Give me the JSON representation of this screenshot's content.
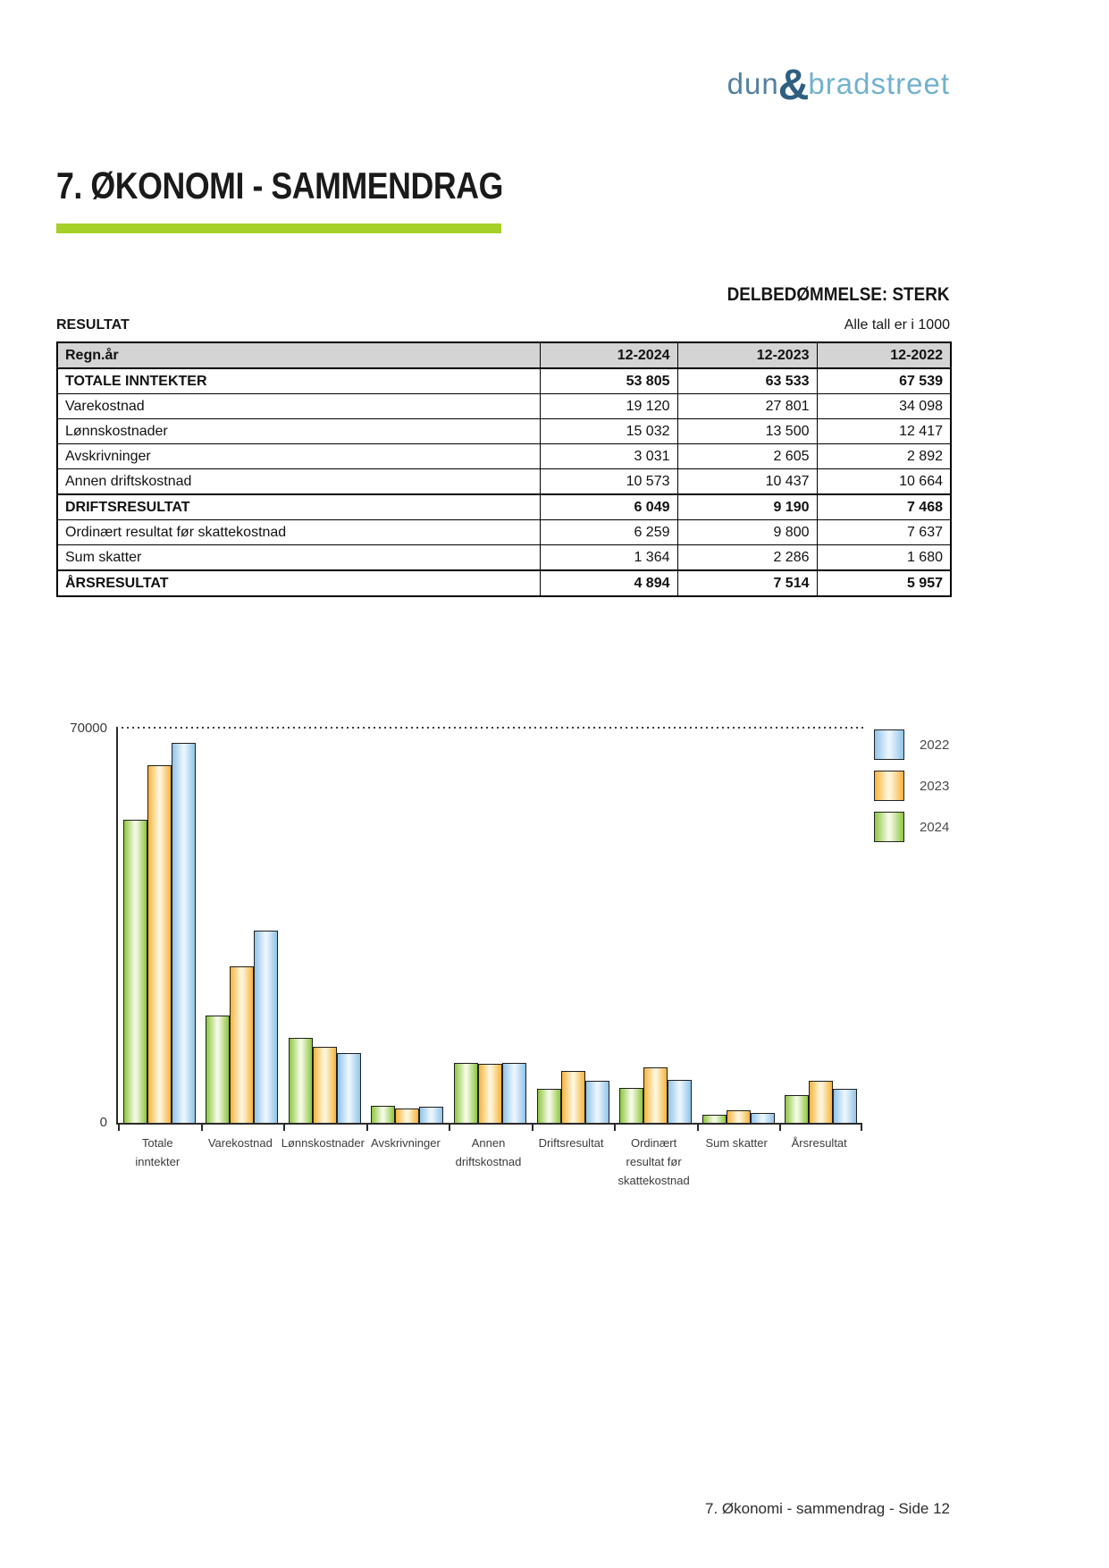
{
  "logo": {
    "word1": "dun",
    "ampersand": "&",
    "word2": "bradstreet",
    "colors": {
      "word1": "#54809f",
      "ampersand": "#2e5f80",
      "word2": "#72b1ce"
    }
  },
  "header": {
    "title": "7. ØKONOMI - SAMMENDRAG",
    "accent_color": "#a5d028",
    "assessment": "DELBEDØMMELSE: STERK",
    "section_label": "RESULTAT",
    "units_note": "Alle tall er i 1000"
  },
  "table": {
    "columns": [
      "Regn.år",
      "12-2024",
      "12-2023",
      "12-2022"
    ],
    "header_bg": "#d4d4d4",
    "rows": [
      {
        "label": "TOTALE INNTEKTER",
        "bold": true,
        "values": [
          "53 805",
          "63 533",
          "67 539"
        ]
      },
      {
        "label": "Varekostnad",
        "bold": false,
        "values": [
          "19 120",
          "27 801",
          "34 098"
        ]
      },
      {
        "label": "Lønnskostnader",
        "bold": false,
        "values": [
          "15 032",
          "13 500",
          "12 417"
        ]
      },
      {
        "label": "Avskrivninger",
        "bold": false,
        "values": [
          "3 031",
          "2 605",
          "2 892"
        ]
      },
      {
        "label": "Annen driftskostnad",
        "bold": false,
        "values": [
          "10 573",
          "10 437",
          "10 664"
        ]
      },
      {
        "label": "DRIFTSRESULTAT",
        "bold": true,
        "values": [
          "6 049",
          "9 190",
          "7 468"
        ]
      },
      {
        "label": "Ordinært resultat før skattekostnad",
        "bold": false,
        "values": [
          "6 259",
          "9 800",
          "7 637"
        ]
      },
      {
        "label": "Sum skatter",
        "bold": false,
        "values": [
          "1 364",
          "2 286",
          "1 680"
        ]
      },
      {
        "label": "ÅRSRESULTAT",
        "bold": true,
        "values": [
          "4 894",
          "7 514",
          "5 957"
        ]
      }
    ]
  },
  "chart_data": {
    "type": "bar",
    "title": "",
    "xlabel": "",
    "ylabel": "",
    "ylim": [
      0,
      70000
    ],
    "ytick_labels": {
      "top": "70000",
      "bottom": "0"
    },
    "grid": "single dotted gridline at y=70000",
    "legend_position": "top-right",
    "legend_order": [
      "2022",
      "2023",
      "2024"
    ],
    "categories": [
      "Totale inntekter",
      "Varekostnad",
      "Lønnskostnader",
      "Avskrivninger",
      "Annen driftskostnad",
      "Driftsresultat",
      "Ordinært resultat før skattekostnad",
      "Sum skatter",
      "Årsresultat"
    ],
    "category_lines": [
      [
        "Totale",
        "inntekter"
      ],
      [
        "Varekostnad"
      ],
      [
        "Lønnskostnader"
      ],
      [
        "Avskrivninger"
      ],
      [
        "Annen",
        "driftskostnad"
      ],
      [
        "Driftsresultat"
      ],
      [
        "Ordinært",
        "resultat før",
        "skattekostnad"
      ],
      [
        "Sum skatter"
      ],
      [
        "Årsresultat"
      ]
    ],
    "series": [
      {
        "name": "2024",
        "color": "#8dc63f",
        "color_light": "#f3f9e3",
        "values": [
          53805,
          19120,
          15032,
          3031,
          10573,
          6049,
          6259,
          1364,
          4894
        ]
      },
      {
        "name": "2023",
        "color": "#f6b43c",
        "color_light": "#fdf5da",
        "values": [
          63533,
          27801,
          13500,
          2605,
          10437,
          9190,
          9800,
          2286,
          7514
        ]
      },
      {
        "name": "2022",
        "color": "#90c4e9",
        "color_light": "#eaf4fc",
        "values": [
          67539,
          34098,
          12417,
          2892,
          10664,
          7468,
          7637,
          1680,
          5957
        ]
      }
    ]
  },
  "footer": {
    "text": "7. Økonomi - sammendrag - Side 12"
  }
}
